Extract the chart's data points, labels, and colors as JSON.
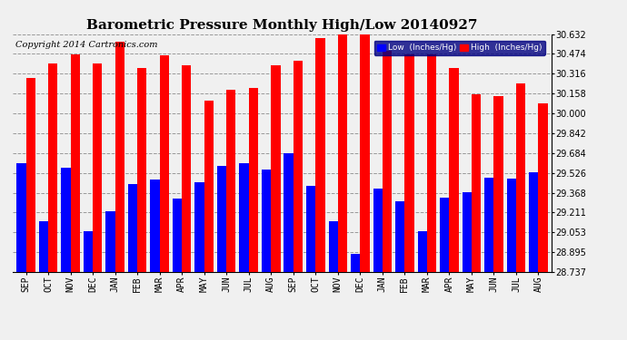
{
  "title": "Barometric Pressure Monthly High/Low 20140927",
  "copyright": "Copyright 2014 Cartronics.com",
  "months": [
    "SEP",
    "OCT",
    "NOV",
    "DEC",
    "JAN",
    "FEB",
    "MAR",
    "APR",
    "MAY",
    "JUN",
    "JUL",
    "AUG",
    "SEP",
    "OCT",
    "NOV",
    "DEC",
    "JAN",
    "FEB",
    "MAR",
    "APR",
    "MAY",
    "JUN",
    "JUL",
    "AUG"
  ],
  "high_values": [
    30.28,
    30.4,
    30.47,
    30.4,
    30.57,
    30.36,
    30.46,
    30.38,
    30.1,
    30.19,
    30.2,
    30.38,
    30.42,
    30.6,
    30.63,
    30.63,
    30.5,
    30.47,
    30.47,
    30.36,
    30.15,
    30.14,
    30.24,
    30.08
  ],
  "low_values": [
    29.6,
    29.14,
    29.57,
    29.06,
    29.22,
    29.44,
    29.47,
    29.32,
    29.45,
    29.58,
    29.6,
    29.55,
    29.68,
    29.42,
    29.14,
    28.88,
    29.4,
    29.3,
    29.06,
    29.33,
    29.37,
    29.49,
    29.48,
    29.53
  ],
  "ylim_min": 28.737,
  "ylim_max": 30.632,
  "yticks": [
    28.737,
    28.895,
    29.053,
    29.211,
    29.368,
    29.526,
    29.684,
    29.842,
    30.0,
    30.158,
    30.316,
    30.474,
    30.632
  ],
  "bar_color_high": "#FF0000",
  "bar_color_low": "#0000FF",
  "background_color": "#F0F0F0",
  "grid_color": "#999999",
  "title_fontsize": 11,
  "tick_fontsize": 7,
  "copyright_fontsize": 7,
  "legend_low_label": "Low  (Inches/Hg)",
  "legend_high_label": "High  (Inches/Hg)"
}
